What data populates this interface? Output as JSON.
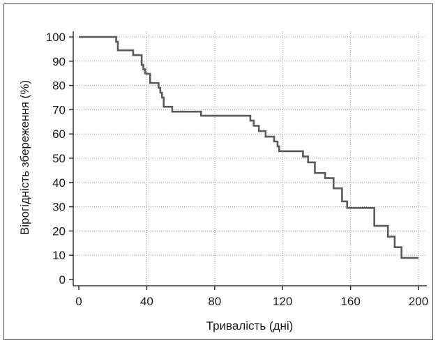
{
  "chart_data": {
    "type": "line",
    "step": true,
    "title": "",
    "xlabel": "Тривалість (дні)",
    "ylabel": "Вірогідність збереження (%)",
    "xlim": [
      0,
      200
    ],
    "ylim": [
      0,
      100
    ],
    "xticks": [
      "0",
      "40",
      "80",
      "120",
      "160",
      "200"
    ],
    "yticks": [
      "0",
      "10",
      "20",
      "30",
      "40",
      "50",
      "60",
      "70",
      "80",
      "90",
      "100"
    ],
    "grid": "dotted",
    "colors": {
      "line": "#5a5a5a",
      "axis": "#333333",
      "grid": "#9a9a9a"
    },
    "series": [
      {
        "x": [
          0,
          22,
          23,
          32,
          37,
          38,
          39,
          40,
          42,
          45,
          47,
          48,
          49,
          50,
          52,
          55,
          72,
          80,
          101,
          103,
          106,
          110,
          115,
          117,
          118,
          125,
          132,
          135,
          139,
          141,
          145,
          150,
          155,
          158,
          174,
          180,
          182,
          186,
          190,
          200
        ],
        "y": [
          100,
          98,
          94.5,
          92.5,
          88.5,
          86.7,
          85,
          84.8,
          81,
          81,
          79,
          77,
          75,
          71.2,
          71.2,
          69.2,
          67.5,
          67.5,
          65.5,
          63.4,
          61.2,
          58.9,
          56.9,
          54.9,
          52.9,
          52.9,
          50.7,
          48.3,
          43.9,
          43.9,
          41.8,
          37.6,
          32.2,
          29.5,
          22.1,
          22.1,
          17.7,
          13.3,
          8.9,
          8.9
        ]
      }
    ]
  }
}
